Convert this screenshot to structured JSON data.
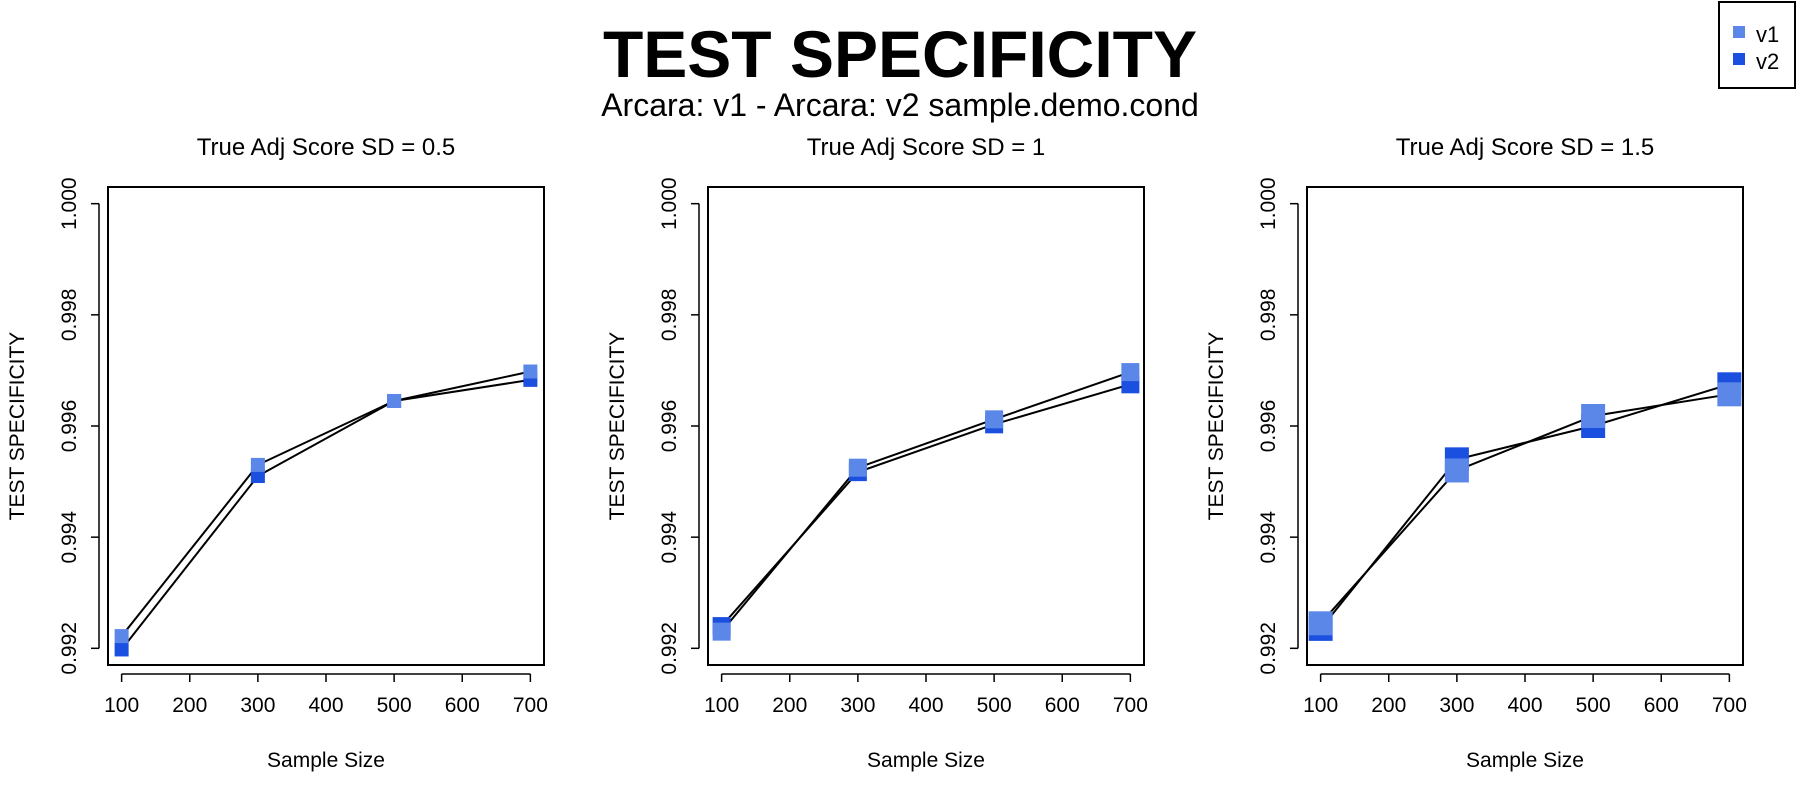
{
  "title": "TEST SPECIFICITY",
  "subtitle": "Arcara: v1 - Arcara: v2 sample.demo.cond",
  "legend": {
    "placement": "top-right",
    "items": [
      {
        "label": "v1",
        "color": "#5b87e8"
      },
      {
        "label": "v2",
        "color": "#1a4fe0"
      }
    ]
  },
  "chart_data": [
    {
      "type": "line",
      "title": "True Adj Score SD = 0.5",
      "xlabel": "Sample Size",
      "ylabel": "TEST SPECIFICITY",
      "x": [
        100,
        300,
        500,
        700
      ],
      "xticks": [
        "100",
        "200",
        "300",
        "400",
        "500",
        "600",
        "700"
      ],
      "yticks": [
        "0.992",
        "0.994",
        "0.996",
        "0.998",
        "1.000"
      ],
      "ylim": [
        0.9917,
        1.0003
      ],
      "series": [
        {
          "name": "v1",
          "color": "#5b87e8",
          "values": [
            0.99222,
            0.9953,
            0.99645,
            0.99698
          ]
        },
        {
          "name": "v2",
          "color": "#1a4fe0",
          "values": [
            0.99198,
            0.9951,
            0.99645,
            0.99683
          ]
        }
      ]
    },
    {
      "type": "line",
      "title": "True Adj Score SD = 1",
      "xlabel": "Sample Size",
      "ylabel": "TEST SPECIFICITY",
      "x": [
        100,
        300,
        500,
        700
      ],
      "xticks": [
        "100",
        "200",
        "300",
        "400",
        "500",
        "600",
        "700"
      ],
      "yticks": [
        "0.992",
        "0.994",
        "0.996",
        "0.998",
        "1.000"
      ],
      "ylim": [
        0.9917,
        1.0003
      ],
      "series": [
        {
          "name": "v1",
          "color": "#5b87e8",
          "values": [
            0.9923,
            0.99525,
            0.99612,
            0.99697
          ]
        },
        {
          "name": "v2",
          "color": "#1a4fe0",
          "values": [
            0.9924,
            0.99517,
            0.99603,
            0.99675
          ]
        }
      ]
    },
    {
      "type": "line",
      "title": "True Adj Score SD = 1.5",
      "xlabel": "Sample Size",
      "ylabel": "TEST SPECIFICITY",
      "x": [
        100,
        300,
        500,
        700
      ],
      "xticks": [
        "100",
        "200",
        "300",
        "400",
        "500",
        "600",
        "700"
      ],
      "yticks": [
        "0.992",
        "0.994",
        "0.996",
        "0.998",
        "1.000"
      ],
      "ylim": [
        0.9917,
        1.0003
      ],
      "series": [
        {
          "name": "v1",
          "color": "#5b87e8",
          "values": [
            0.99245,
            0.9952,
            0.99618,
            0.99657
          ]
        },
        {
          "name": "v2",
          "color": "#1a4fe0",
          "values": [
            0.99235,
            0.9954,
            0.996,
            0.99675
          ]
        }
      ]
    }
  ]
}
